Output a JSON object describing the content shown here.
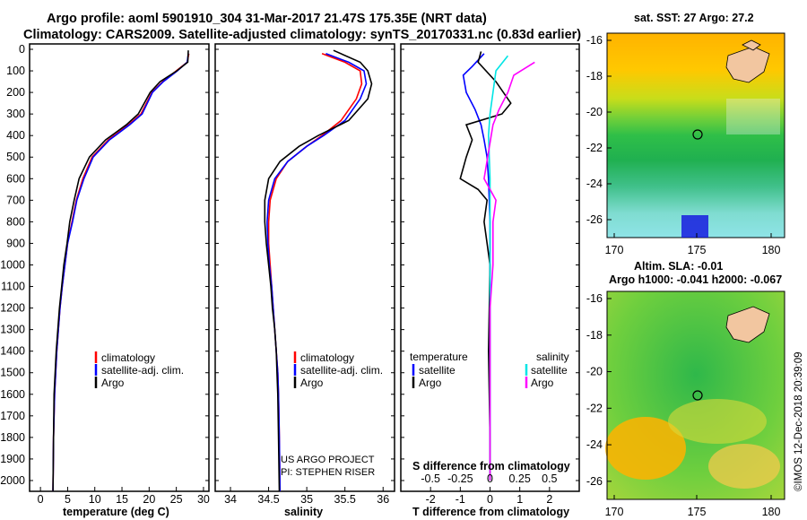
{
  "header": {
    "title_line1": "Argo profile: aoml 5901910_304 31-Mar-2017 21.47S 175.35E (NRT data)",
    "title_line2": "Climatology: CARS2009. Satellite-adjusted climatology: synTS_20170331.nc (0.83d earlier)"
  },
  "colors": {
    "climatology": "#ff0000",
    "satellite": "#0000ff",
    "argo": "#000000",
    "cyan": "#00e5e5",
    "magenta": "#ff00ff"
  },
  "depth_axis": {
    "ticks": [
      "0",
      "100",
      "200",
      "300",
      "400",
      "500",
      "600",
      "700",
      "800",
      "900",
      "1000",
      "1100",
      "1200",
      "1300",
      "1400",
      "1500",
      "1600",
      "1700",
      "1800",
      "1900",
      "2000"
    ],
    "ylim": [
      0,
      2050
    ]
  },
  "panels": {
    "temperature": {
      "xlabel": "temperature (deg C)",
      "xticks": [
        "0",
        "5",
        "10",
        "15",
        "20",
        "25",
        "30"
      ],
      "legend": [
        "climatology",
        "satellite-adj. clim.",
        "Argo"
      ]
    },
    "salinity": {
      "xlabel": "salinity",
      "xticks": [
        "34",
        "34.5",
        "35",
        "35.5",
        "36"
      ],
      "legend": [
        "climatology",
        "satellite-adj. clim.",
        "Argo"
      ],
      "credit1": "US ARGO PROJECT",
      "credit2": "PI: STEPHEN RISER"
    },
    "difference": {
      "xlabel": "T difference from climatology",
      "xticks": [
        "-2",
        "-1",
        "0",
        "1",
        "2"
      ],
      "s_axis_title": "S difference from climatology",
      "s_ticks": [
        "-0.5",
        "-0.25",
        "0",
        "0.25",
        "0.5"
      ],
      "legend_left_title": "temperature",
      "legend_right_title": "salinity",
      "legend_items": [
        "satellite",
        "Argo"
      ]
    }
  },
  "maps": {
    "sst": {
      "title": "sat. SST: 27 Argo: 27.2",
      "yticks": [
        "-16",
        "-18",
        "-20",
        "-22",
        "-24",
        "-26"
      ],
      "xticks": [
        "170",
        "175",
        "180"
      ]
    },
    "sla": {
      "title1": "Altim. SLA: -0.01",
      "title2": "Argo h1000: -0.041 h2000: -0.067",
      "yticks": [
        "-16",
        "-18",
        "-20",
        "-22",
        "-24",
        "-26"
      ],
      "xticks": [
        "170",
        "175",
        "180"
      ]
    }
  },
  "footer": {
    "stamp": "©IMOS 12-Dec-2018 20:39:09"
  },
  "chart_data": [
    {
      "type": "line",
      "title": "",
      "xlabel": "temperature (deg C)",
      "ylabel": "",
      "xlim": [
        -2,
        31
      ],
      "ylim": [
        0,
        2050
      ],
      "series": [
        {
          "name": "climatology",
          "color": "#ff0000",
          "x": [
            27.3,
            27.0,
            25.0,
            22.5,
            20.5,
            18.5,
            16.2,
            12.5,
            9.5,
            7.8,
            6.6,
            5.8,
            5.0,
            4.5,
            4.0,
            3.6,
            3.3,
            3.0,
            2.8,
            2.6,
            2.4,
            2.3
          ],
          "y": [
            20,
            60,
            100,
            150,
            200,
            300,
            350,
            420,
            500,
            600,
            700,
            800,
            900,
            1000,
            1100,
            1200,
            1300,
            1400,
            1500,
            1600,
            1800,
            2050
          ]
        },
        {
          "name": "satellite-adj. clim.",
          "color": "#0000ff",
          "x": [
            27.2,
            27.0,
            25.2,
            22.6,
            20.6,
            18.7,
            16.4,
            12.7,
            9.7,
            8.0,
            6.7,
            5.9,
            5.0,
            4.5,
            4.0,
            3.6,
            3.3,
            3.0,
            2.8,
            2.6,
            2.4,
            2.3
          ],
          "y": [
            20,
            60,
            100,
            150,
            200,
            300,
            350,
            420,
            500,
            600,
            700,
            800,
            900,
            1000,
            1100,
            1200,
            1300,
            1400,
            1500,
            1600,
            1800,
            2050
          ]
        },
        {
          "name": "Argo",
          "color": "#000000",
          "x": [
            27.2,
            27.1,
            25.1,
            22.0,
            20.2,
            18.0,
            15.8,
            12.0,
            9.0,
            7.1,
            6.2,
            5.4,
            4.9,
            4.3,
            3.9,
            3.5,
            3.2,
            2.9,
            2.7,
            2.5,
            2.4,
            2.3
          ],
          "y": [
            5,
            60,
            100,
            150,
            200,
            300,
            350,
            420,
            500,
            600,
            700,
            800,
            900,
            1000,
            1100,
            1200,
            1300,
            1400,
            1500,
            1600,
            1800,
            2050
          ]
        }
      ]
    },
    {
      "type": "line",
      "title": "",
      "xlabel": "salinity",
      "ylabel": "",
      "xlim": [
        33.8,
        36.15
      ],
      "ylim": [
        0,
        2050
      ],
      "series": [
        {
          "name": "climatology",
          "color": "#ff0000",
          "x": [
            35.2,
            35.5,
            35.7,
            35.72,
            35.65,
            35.45,
            35.2,
            35.0,
            34.75,
            34.6,
            34.52,
            34.5,
            34.5,
            34.52,
            34.54,
            34.56,
            34.58,
            34.6,
            34.62,
            34.63,
            34.64,
            34.65
          ],
          "y": [
            20,
            60,
            100,
            160,
            230,
            330,
            400,
            450,
            520,
            600,
            700,
            800,
            900,
            1000,
            1100,
            1200,
            1300,
            1400,
            1500,
            1600,
            1800,
            2050
          ]
        },
        {
          "name": "satellite-adj. clim.",
          "color": "#0000ff",
          "x": [
            35.25,
            35.55,
            35.75,
            35.78,
            35.7,
            35.5,
            35.22,
            35.0,
            34.75,
            34.58,
            34.5,
            34.48,
            34.49,
            34.51,
            34.54,
            34.56,
            34.58,
            34.6,
            34.62,
            34.63,
            34.64,
            34.65
          ],
          "y": [
            20,
            60,
            100,
            160,
            230,
            330,
            400,
            450,
            520,
            600,
            700,
            800,
            900,
            1000,
            1100,
            1200,
            1300,
            1400,
            1500,
            1600,
            1800,
            2050
          ]
        },
        {
          "name": "Argo",
          "color": "#000000",
          "x": [
            35.35,
            35.7,
            35.8,
            35.85,
            35.8,
            35.55,
            35.15,
            34.9,
            34.65,
            34.5,
            34.45,
            34.45,
            34.47,
            34.5,
            34.53,
            34.55,
            34.58,
            34.6,
            34.61,
            34.62,
            34.63,
            34.64
          ],
          "y": [
            5,
            60,
            100,
            160,
            230,
            330,
            400,
            450,
            520,
            600,
            700,
            800,
            900,
            1000,
            1100,
            1200,
            1300,
            1400,
            1500,
            1600,
            1800,
            2050
          ]
        }
      ]
    },
    {
      "type": "line",
      "title": "",
      "xlabel": "T difference from climatology",
      "ylabel": "",
      "xlim": [
        -3,
        3
      ],
      "ylim": [
        0,
        2050
      ],
      "series": [
        {
          "name": "temperature satellite",
          "color": "#0000ff",
          "x": [
            -0.2,
            -0.6,
            -0.9,
            -0.8,
            -0.5,
            -0.3,
            -0.2,
            -0.1,
            -0.05,
            0,
            0,
            0,
            0,
            0
          ],
          "y": [
            20,
            80,
            120,
            200,
            280,
            350,
            420,
            500,
            600,
            800,
            1000,
            1400,
            1800,
            2000
          ]
        },
        {
          "name": "temperature Argo",
          "color": "#000000",
          "x": [
            -0.3,
            -0.4,
            0.2,
            0.7,
            0.4,
            -0.8,
            -0.6,
            -0.8,
            -1.0,
            -0.4,
            -0.1,
            -0.2,
            -0.1,
            0,
            -0.05,
            0,
            0
          ],
          "y": [
            10,
            60,
            150,
            250,
            300,
            350,
            420,
            500,
            600,
            650,
            700,
            800,
            900,
            1000,
            1400,
            1800,
            2000
          ]
        },
        {
          "name": "salinity satellite",
          "color": "#00e5e5",
          "x": [
            0.6,
            0.2,
            0.1,
            0.0,
            -0.05,
            0,
            0,
            0,
            0,
            0
          ],
          "y": [
            30,
            100,
            200,
            300,
            400,
            600,
            800,
            1200,
            1600,
            2000
          ]
        },
        {
          "name": "salinity Argo",
          "color": "#ff00ff",
          "x": [
            1.5,
            0.8,
            0.6,
            0.3,
            0.1,
            -0.2,
            0.2,
            0.1,
            0.1,
            0,
            0,
            0
          ],
          "y": [
            60,
            120,
            200,
            280,
            350,
            600,
            700,
            800,
            1000,
            1200,
            1600,
            2000
          ]
        }
      ]
    }
  ]
}
